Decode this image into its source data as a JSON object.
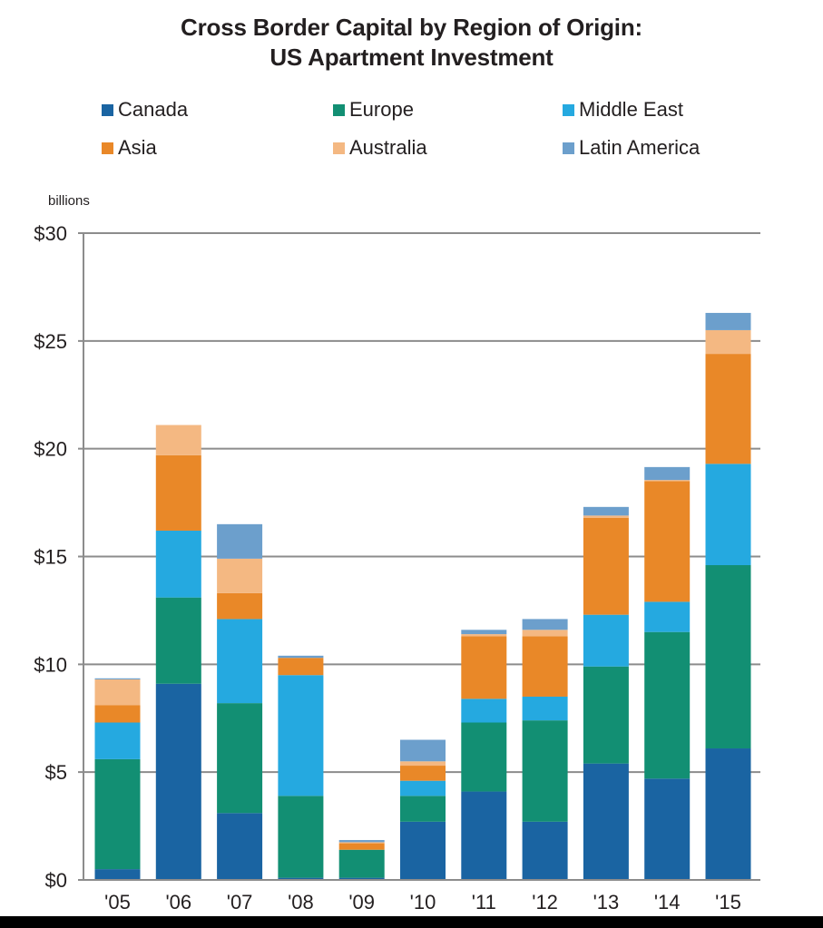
{
  "chart_data": {
    "type": "bar",
    "stacked": true,
    "title": "Cross Border Capital by Region of Origin:",
    "subtitle": "US Apartment Investment",
    "xlabel": "",
    "ylabel": "billions",
    "ylim": [
      0,
      30
    ],
    "yticks": [
      0,
      5,
      10,
      15,
      20,
      25,
      30
    ],
    "ytick_labels": [
      "$0",
      "$5",
      "$10",
      "$15",
      "$20",
      "$25",
      "$30"
    ],
    "grid": true,
    "legend_position": "top",
    "categories": [
      "'05",
      "'06",
      "'07",
      "'08",
      "'09",
      "'10",
      "'11",
      "'12",
      "'13",
      "'14",
      "'15"
    ],
    "series": [
      {
        "name": "Canada",
        "color": "#1a64a2",
        "values": [
          0.5,
          9.1,
          3.1,
          0.1,
          0.1,
          2.7,
          4.1,
          2.7,
          5.4,
          4.7,
          6.1
        ]
      },
      {
        "name": "Europe",
        "color": "#128f73",
        "values": [
          5.1,
          4.0,
          5.1,
          3.8,
          1.3,
          1.2,
          3.2,
          4.7,
          4.5,
          6.8,
          8.5
        ]
      },
      {
        "name": "Middle East",
        "color": "#25a9e0",
        "values": [
          1.7,
          3.1,
          3.9,
          5.6,
          0.0,
          0.7,
          1.1,
          1.1,
          2.4,
          1.4,
          4.7
        ]
      },
      {
        "name": "Asia",
        "color": "#e98828",
        "values": [
          0.8,
          3.5,
          1.2,
          0.8,
          0.3,
          0.7,
          2.9,
          2.8,
          4.5,
          5.6,
          5.1
        ]
      },
      {
        "name": "Australia",
        "color": "#f4b882",
        "values": [
          1.2,
          1.4,
          1.6,
          0.0,
          0.05,
          0.2,
          0.1,
          0.3,
          0.1,
          0.05,
          1.1
        ]
      },
      {
        "name": "Latin America",
        "color": "#6c9fcc",
        "values": [
          0.05,
          0.0,
          1.6,
          0.1,
          0.1,
          1.0,
          0.2,
          0.5,
          0.4,
          0.6,
          0.8
        ]
      }
    ]
  },
  "legend": {
    "items": [
      {
        "label": "Canada",
        "color": "#1a64a2"
      },
      {
        "label": "Europe",
        "color": "#128f73"
      },
      {
        "label": "Middle East",
        "color": "#25a9e0"
      },
      {
        "label": "Asia",
        "color": "#e98828"
      },
      {
        "label": "Australia",
        "color": "#f4b882"
      },
      {
        "label": "Latin America",
        "color": "#6c9fcc"
      }
    ]
  },
  "colors": {
    "gridline": "#8c8c8c",
    "text": "#231f20"
  }
}
